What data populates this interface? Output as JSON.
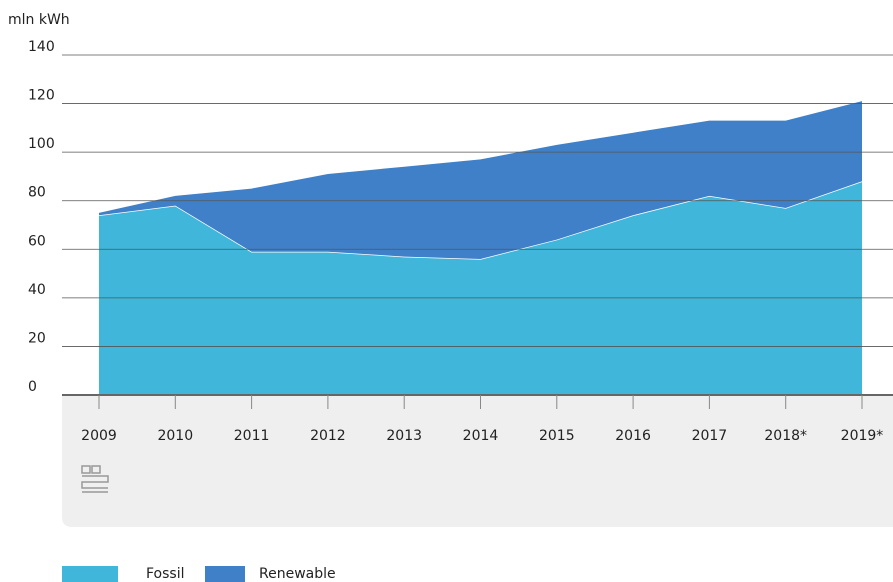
{
  "chart_data": {
    "type": "stacked_area",
    "y_axis_label": "mln kWh",
    "categories": [
      "2009",
      "2010",
      "2011",
      "2012",
      "2013",
      "2014",
      "2015",
      "2016",
      "2017",
      "2018*",
      "2019*"
    ],
    "series": [
      {
        "name": "Fossil",
        "color": "#3fb6da",
        "values": [
          74,
          78,
          59,
          59,
          57,
          56,
          64,
          74,
          82,
          77,
          88
        ]
      },
      {
        "name": "Renewable",
        "color": "#3f80c8",
        "values": [
          1,
          4,
          26,
          32,
          37,
          41,
          39,
          34,
          31,
          36,
          33
        ]
      }
    ],
    "ylim": [
      0,
      140
    ],
    "yticks": [
      0,
      20,
      40,
      60,
      80,
      100,
      120,
      140
    ],
    "grid": true
  }
}
